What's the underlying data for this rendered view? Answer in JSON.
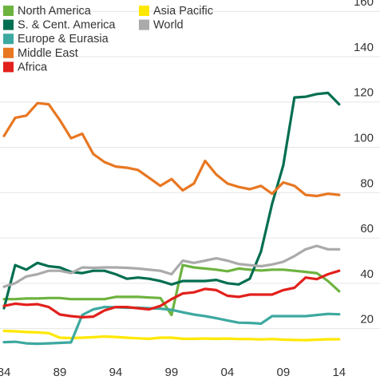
{
  "chart_data": {
    "type": "line",
    "xlim": [
      1984,
      2014.8
    ],
    "ylim": [
      10,
      165
    ],
    "x_ticks": [
      {
        "value": 1984,
        "label": "84"
      },
      {
        "value": 1989,
        "label": "89"
      },
      {
        "value": 1994,
        "label": "94"
      },
      {
        "value": 1999,
        "label": "99"
      },
      {
        "value": 2004,
        "label": "04"
      },
      {
        "value": 2009,
        "label": "09"
      },
      {
        "value": 2014,
        "label": "14"
      }
    ],
    "y_ticks": [
      {
        "value": 20,
        "label": "20"
      },
      {
        "value": 40,
        "label": "40"
      },
      {
        "value": 60,
        "label": "60"
      },
      {
        "value": 80,
        "label": "80"
      },
      {
        "value": 100,
        "label": "100"
      },
      {
        "value": 120,
        "label": "120"
      },
      {
        "value": 140,
        "label": "140"
      },
      {
        "value": 160,
        "label": "160"
      }
    ],
    "x": [
      1984,
      1985,
      1986,
      1987,
      1988,
      1989,
      1990,
      1991,
      1992,
      1993,
      1994,
      1995,
      1996,
      1997,
      1998,
      1999,
      2000,
      2001,
      2002,
      2003,
      2004,
      2005,
      2006,
      2007,
      2008,
      2009,
      2010,
      2011,
      2012,
      2013,
      2014
    ],
    "series": [
      {
        "name": "North America",
        "color": "#6db33f",
        "values": [
          33,
          33,
          33.3,
          33.3,
          33.5,
          33.5,
          33,
          33,
          33,
          33,
          34,
          34,
          34,
          33.7,
          33.5,
          26,
          48,
          47,
          46.5,
          46,
          45.3,
          46.5,
          46,
          45.6,
          46,
          46,
          45.5,
          45,
          44.5,
          41,
          36.5
        ]
      },
      {
        "name": "Asia Pacific",
        "color": "#ffe800",
        "values": [
          19,
          18.8,
          18.5,
          18.3,
          18,
          16,
          15.8,
          16,
          16.2,
          16.5,
          16.3,
          16,
          15.7,
          15.5,
          16,
          16,
          15.5,
          15.5,
          15.6,
          15.5,
          15.6,
          15.4,
          15.4,
          15.2,
          15.4,
          15.1,
          15,
          14.9,
          15.1,
          15.3,
          15.3
        ]
      },
      {
        "name": "S. & Cent. America",
        "color": "#006e50",
        "values": [
          29,
          48,
          46,
          49,
          47.5,
          47,
          45,
          44.5,
          45.5,
          45.5,
          44,
          42,
          42.5,
          42,
          41,
          39.5,
          41,
          41,
          41,
          41.5,
          40,
          39.5,
          42,
          54,
          75,
          92,
          122,
          122.3,
          123.5,
          124,
          119
        ]
      },
      {
        "name": "World",
        "color": "#aaaaaa",
        "values": [
          38.5,
          40,
          43,
          44,
          45.5,
          45.5,
          44.5,
          47,
          46.8,
          47,
          47,
          46.8,
          46.5,
          46,
          45.5,
          44,
          50,
          49,
          50,
          51,
          50,
          48.5,
          48,
          47.5,
          48.3,
          49.5,
          52,
          55,
          56.5,
          55,
          55
        ]
      },
      {
        "name": "Europe & Eurasia",
        "color": "#3da9a0",
        "values": [
          14,
          14.2,
          13.5,
          13.3,
          13.5,
          13.7,
          13.9,
          26,
          28.5,
          29.5,
          29.4,
          29.2,
          29.2,
          29,
          28.8,
          28.3,
          27.2,
          26.2,
          25.5,
          24.6,
          23.6,
          22.6,
          22.5,
          22.2,
          25.5,
          25.5,
          25.5,
          25.5,
          26,
          26.5,
          26.3
        ]
      },
      {
        "name": "Middle East",
        "color": "#e87722",
        "values": [
          105,
          113,
          114,
          119.5,
          119,
          112,
          104,
          106,
          97,
          93.5,
          91.5,
          91,
          90,
          86.5,
          83,
          86,
          81,
          84,
          94,
          88,
          84,
          82.5,
          81.5,
          83,
          79.5,
          84.5,
          83,
          79,
          78.5,
          79.5,
          79
        ]
      },
      {
        "name": "Africa",
        "color": "#e2201c",
        "values": [
          30,
          31,
          30.5,
          30.8,
          29.5,
          26.2,
          25.5,
          25,
          25.3,
          28,
          29.5,
          29.5,
          29,
          28.5,
          30,
          33,
          35.5,
          36,
          37.5,
          37,
          34.5,
          34,
          35,
          35,
          35,
          37,
          38,
          42.5,
          41.8,
          44,
          45.5
        ]
      }
    ]
  },
  "legend": {
    "col1": [
      "North America",
      "S. & Cent. America",
      "Europe & Eurasia",
      "Middle East",
      "Africa"
    ],
    "col2": [
      "Asia Pacific",
      "World"
    ]
  }
}
